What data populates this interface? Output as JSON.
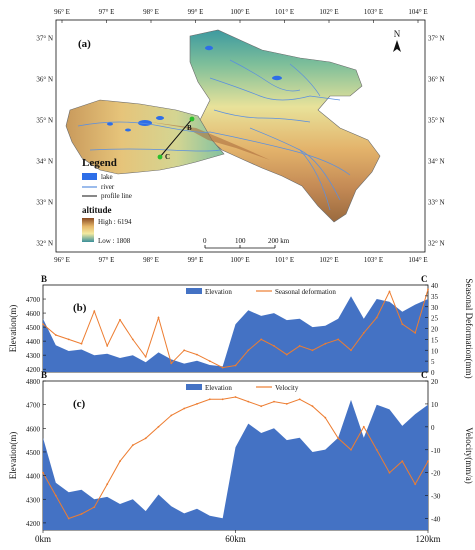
{
  "map": {
    "panel_label": "(a)",
    "lon_labels": [
      "96° E",
      "97° E",
      "98° E",
      "99° E",
      "100° E",
      "101° E",
      "102° E",
      "103° E",
      "104° E"
    ],
    "lat_labels": [
      "37° N",
      "36° N",
      "35° N",
      "34° N",
      "33° N",
      "32° N"
    ],
    "north_label": "N",
    "legend": {
      "title": "Legend",
      "lake": "lake",
      "river": "river",
      "profile": "profile line",
      "altitude_title": "altitude",
      "high": "High : 6194",
      "low": "Low : 1808"
    },
    "scalebar": [
      "0",
      "100",
      "200 km"
    ],
    "point_b": "B",
    "point_c": "C",
    "colors": {
      "lake": "#2d6ee8",
      "river": "#5a8fe0",
      "low": "#3a8f9a",
      "mid": "#f3eaa0",
      "high": "#8a4a22"
    }
  },
  "chart_data": [
    {
      "type": "area+line",
      "panel_label": "(b)",
      "left_label": "B",
      "right_label": "C",
      "ylabel_left": "Elevation(m)",
      "ylabel_right": "Seasonal Deformation(mm)",
      "yticks_left": [
        "4700",
        "4600",
        "4500",
        "4400",
        "4300",
        "4200"
      ],
      "yticks_right": [
        "40",
        "35",
        "30",
        "25",
        "20",
        "15",
        "10",
        "5",
        "0"
      ],
      "ylim_left": [
        4180,
        4800
      ],
      "ylim_right": [
        0,
        40
      ],
      "x": [
        0,
        4,
        8,
        12,
        16,
        20,
        24,
        28,
        32,
        36,
        40,
        44,
        48,
        52,
        56,
        60,
        64,
        68,
        72,
        76,
        80,
        84,
        88,
        92,
        96,
        100,
        104,
        108,
        112,
        116,
        120
      ],
      "series": [
        {
          "name": "Elevation",
          "values": [
            4560,
            4370,
            4330,
            4340,
            4300,
            4310,
            4280,
            4300,
            4250,
            4320,
            4270,
            4240,
            4260,
            4230,
            4220,
            4520,
            4620,
            4580,
            4600,
            4550,
            4560,
            4500,
            4510,
            4560,
            4720,
            4560,
            4700,
            4680,
            4610,
            4660,
            4700
          ],
          "color": "#4472c4"
        },
        {
          "name": "Seasonal deformation",
          "values": [
            22,
            17,
            15,
            13,
            28,
            12,
            24,
            15,
            7,
            25,
            4,
            10,
            8,
            5,
            2,
            3,
            10,
            15,
            12,
            8,
            12,
            10,
            13,
            15,
            10,
            18,
            25,
            37,
            22,
            18,
            38
          ],
          "color": "#ed7d31"
        }
      ]
    },
    {
      "type": "area+line",
      "panel_label": "(c)",
      "left_label": "B",
      "right_label": "C",
      "ylabel_left": "Elevation(m)",
      "ylabel_right": "Velocity(mm/a)",
      "yticks_left": [
        "4800",
        "4700",
        "4600",
        "4500",
        "4400",
        "4300",
        "4200"
      ],
      "yticks_right": [
        "20",
        "10",
        "0",
        "-10",
        "-20",
        "-30",
        "-40"
      ],
      "ylim_left": [
        4170,
        4800
      ],
      "ylim_right": [
        -45,
        20
      ],
      "x": [
        0,
        4,
        8,
        12,
        16,
        20,
        24,
        28,
        32,
        36,
        40,
        44,
        48,
        52,
        56,
        60,
        64,
        68,
        72,
        76,
        80,
        84,
        88,
        92,
        96,
        100,
        104,
        108,
        112,
        116,
        120
      ],
      "series": [
        {
          "name": "Elevation",
          "values": [
            4560,
            4370,
            4330,
            4340,
            4300,
            4310,
            4280,
            4300,
            4250,
            4320,
            4270,
            4240,
            4260,
            4230,
            4220,
            4520,
            4620,
            4580,
            4600,
            4550,
            4560,
            4500,
            4510,
            4560,
            4720,
            4560,
            4700,
            4680,
            4610,
            4660,
            4700
          ],
          "color": "#4472c4"
        },
        {
          "name": "Velocity",
          "values": [
            -20,
            -30,
            -40,
            -38,
            -35,
            -25,
            -15,
            -8,
            -5,
            0,
            5,
            8,
            10,
            12,
            12,
            13,
            11,
            9,
            11,
            10,
            12,
            9,
            4,
            -5,
            -10,
            0,
            -10,
            -20,
            -15,
            -25,
            -15
          ],
          "color": "#ed7d31"
        }
      ],
      "xticks": [
        "0km",
        "60km",
        "120km"
      ]
    }
  ]
}
